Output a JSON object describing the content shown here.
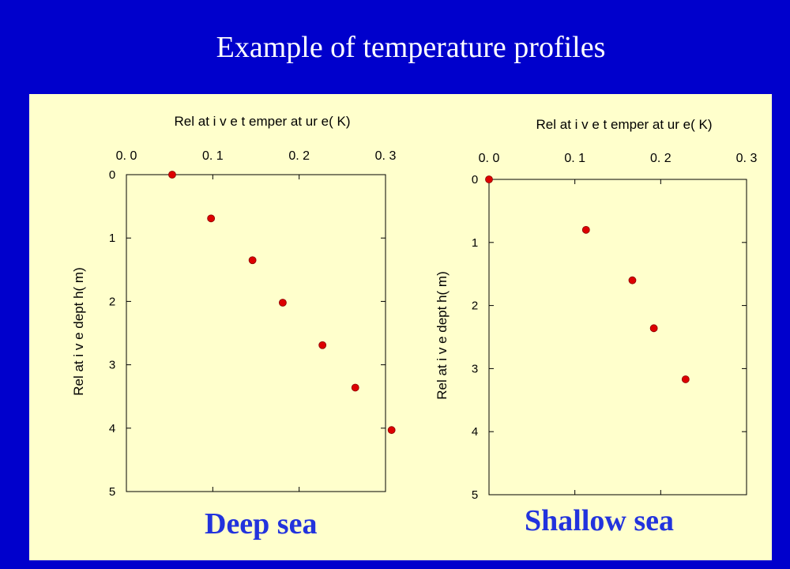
{
  "slide_title": "Example of temperature profiles",
  "colors": {
    "background": "#0000cc",
    "panel": "#ffffcc",
    "point": "#dd0000",
    "caption": "#2233dd"
  },
  "chart_data": [
    {
      "type": "scatter",
      "title": "Deep sea",
      "xlabel": "Rel at i v e   t emper at ur e( K)",
      "ylabel": "Rel at i v e   dept h( m)",
      "xlim": [
        0,
        0.3
      ],
      "ylim": [
        0,
        5
      ],
      "y_inverted": true,
      "x_axis_position": "top",
      "xticks": [
        0,
        0.1,
        0.2,
        0.3
      ],
      "xtick_labels": [
        "0. 0",
        "0. 1",
        "0. 2",
        "0. 3"
      ],
      "yticks": [
        0,
        1,
        2,
        3,
        4,
        5
      ],
      "ytick_labels": [
        "0",
        "1",
        "2",
        "3",
        "4",
        "5"
      ],
      "grid": false,
      "points": [
        {
          "x": 0.053,
          "y": 0.0
        },
        {
          "x": 0.098,
          "y": 0.69
        },
        {
          "x": 0.146,
          "y": 1.35
        },
        {
          "x": 0.181,
          "y": 2.02
        },
        {
          "x": 0.227,
          "y": 2.69
        },
        {
          "x": 0.265,
          "y": 3.36
        },
        {
          "x": 0.307,
          "y": 4.03
        }
      ]
    },
    {
      "type": "scatter",
      "title": "Shallow sea",
      "xlabel": "Rel at i v e   t emper at ur e( K)",
      "ylabel": "Rel at i v e   dept h( m)",
      "xlim": [
        0,
        0.3
      ],
      "ylim": [
        0,
        5
      ],
      "y_inverted": true,
      "x_axis_position": "top",
      "xticks": [
        0,
        0.1,
        0.2,
        0.3
      ],
      "xtick_labels": [
        "0. 0",
        "0. 1",
        "0. 2",
        "0. 3"
      ],
      "yticks": [
        0,
        1,
        2,
        3,
        4,
        5
      ],
      "ytick_labels": [
        "0",
        "1",
        "2",
        "3",
        "4",
        "5"
      ],
      "grid": false,
      "points": [
        {
          "x": 0.0,
          "y": 0.0
        },
        {
          "x": 0.113,
          "y": 0.8
        },
        {
          "x": 0.167,
          "y": 1.6
        },
        {
          "x": 0.192,
          "y": 2.36
        },
        {
          "x": 0.229,
          "y": 3.17
        }
      ]
    }
  ]
}
